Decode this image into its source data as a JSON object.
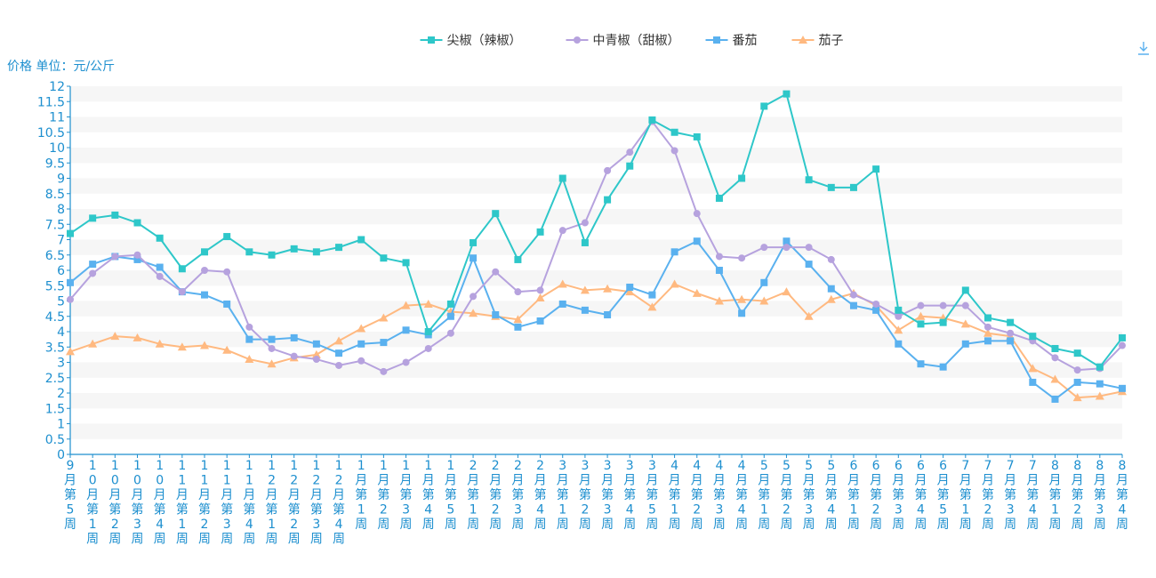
{
  "toolbar": {
    "download_icon": "download-icon"
  },
  "chart_data": {
    "type": "line",
    "title": "",
    "ylabel": "价格 单位：元/公斤",
    "xlabel": "",
    "ylim": [
      0,
      12
    ],
    "y_step": 0.5,
    "grid": "horizontal-bands",
    "legend_position": "top-center",
    "categories": [
      "9月第5周",
      "10月第1周",
      "10月第2周",
      "10月第3周",
      "10月第4周",
      "11月第1周",
      "11月第2周",
      "11月第3周",
      "11月第4周",
      "12月第1周",
      "12月第2周",
      "12月第3周",
      "12月第4周",
      "1月第1周",
      "1月第2周",
      "1月第3周",
      "1月第4周",
      "1月第5周",
      "2月第1周",
      "2月第2周",
      "2月第3周",
      "2月第4周",
      "3月第1周",
      "3月第2周",
      "3月第3周",
      "3月第4周",
      "3月第5周",
      "4月第1周",
      "4月第2周",
      "4月第3周",
      "4月第4周",
      "5月第1周",
      "5月第2周",
      "5月第3周",
      "5月第4周",
      "6月第1周",
      "6月第2周",
      "6月第3周",
      "6月第4周",
      "6月第5周",
      "7月第1周",
      "7月第2周",
      "7月第3周",
      "7月第4周",
      "8月第1周",
      "8月第2周",
      "8月第3周",
      "8月第4周"
    ],
    "series": [
      {
        "name": "尖椒（辣椒）",
        "color": "#2ec7c9",
        "marker": "square",
        "values": [
          7.2,
          7.7,
          7.8,
          7.55,
          7.05,
          6.05,
          6.6,
          7.1,
          6.6,
          6.5,
          6.7,
          6.6,
          6.75,
          7.0,
          6.4,
          6.25,
          4.0,
          4.9,
          6.9,
          7.85,
          6.35,
          7.25,
          9.0,
          6.9,
          8.3,
          9.4,
          10.9,
          10.5,
          10.35,
          8.35,
          9.0,
          11.35,
          11.75,
          8.95,
          8.7,
          8.7,
          9.3,
          4.7,
          4.25,
          4.3,
          5.35,
          4.45,
          4.3,
          3.85,
          3.45,
          3.3,
          2.85,
          3.8
        ]
      },
      {
        "name": "中青椒（甜椒）",
        "color": "#b6a2de",
        "marker": "circle",
        "values": [
          5.05,
          5.9,
          6.45,
          6.5,
          5.8,
          5.3,
          6.0,
          5.95,
          4.15,
          3.45,
          3.2,
          3.1,
          2.9,
          3.05,
          2.7,
          3.0,
          3.45,
          3.95,
          5.15,
          5.95,
          5.3,
          5.35,
          7.3,
          7.55,
          9.25,
          9.85,
          10.85,
          9.9,
          7.85,
          6.45,
          6.4,
          6.75,
          6.75,
          6.75,
          6.35,
          5.2,
          4.9,
          4.5,
          4.85,
          4.85,
          4.85,
          4.15,
          3.95,
          3.7,
          3.15,
          2.75,
          2.8,
          3.55
        ]
      },
      {
        "name": "番茄",
        "color": "#5ab1ef",
        "marker": "square",
        "values": [
          5.6,
          6.2,
          6.45,
          6.35,
          6.1,
          5.3,
          5.2,
          4.9,
          3.75,
          3.75,
          3.8,
          3.6,
          3.3,
          3.6,
          3.65,
          4.05,
          3.9,
          4.5,
          6.4,
          4.55,
          4.15,
          4.35,
          4.9,
          4.7,
          4.55,
          5.45,
          5.2,
          6.6,
          6.95,
          6.0,
          4.6,
          5.6,
          6.95,
          6.2,
          5.4,
          4.85,
          4.7,
          3.6,
          2.95,
          2.85,
          3.6,
          3.7,
          3.7,
          2.35,
          1.8,
          2.35,
          2.3,
          2.15
        ]
      },
      {
        "name": "茄子",
        "color": "#ffb980",
        "marker": "triangle",
        "values": [
          3.35,
          3.6,
          3.85,
          3.8,
          3.6,
          3.5,
          3.55,
          3.4,
          3.1,
          2.95,
          3.15,
          3.25,
          3.7,
          4.1,
          4.45,
          4.85,
          4.9,
          4.65,
          4.6,
          4.5,
          4.4,
          5.1,
          5.55,
          5.35,
          5.4,
          5.3,
          4.8,
          5.55,
          5.25,
          5.0,
          5.05,
          5.0,
          5.3,
          4.5,
          5.05,
          5.25,
          4.85,
          4.05,
          4.5,
          4.45,
          4.25,
          3.95,
          3.85,
          2.8,
          2.45,
          1.85,
          1.9,
          2.05
        ]
      }
    ]
  }
}
